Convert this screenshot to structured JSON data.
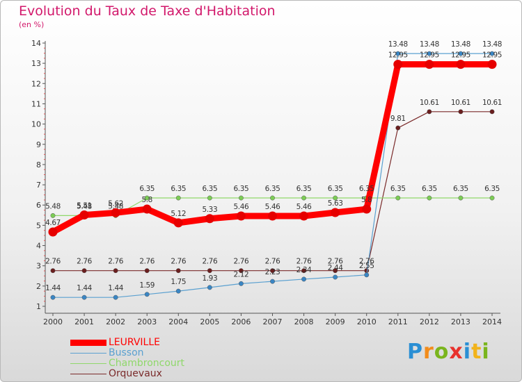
{
  "title": "Evolution du Taux de Taxe d'Habitation",
  "unit": "(en %)",
  "logo": {
    "text": "Proxiti",
    "letters": [
      {
        "char": "P",
        "color": "#2a8fd4"
      },
      {
        "char": "r",
        "color": "#f28c1b"
      },
      {
        "char": "o",
        "color": "#7ab51d"
      },
      {
        "char": "x",
        "color": "#e8322d"
      },
      {
        "char": "i",
        "color": "#2a8fd4"
      },
      {
        "char": "t",
        "color": "#f2b31b"
      },
      {
        "char": "i",
        "color": "#7ab51d"
      }
    ]
  },
  "legend": [
    {
      "label": "LEURVILLE",
      "color": "#ff0000"
    },
    {
      "label": "Busson",
      "color": "#5aa0d0"
    },
    {
      "label": "Chambroncourt",
      "color": "#8fd86a"
    },
    {
      "label": "Orquevaux",
      "color": "#7a2a2a"
    }
  ],
  "chart_data": {
    "type": "line",
    "x": [
      "2000",
      "2001",
      "2002",
      "2003",
      "2004",
      "2005",
      "2006",
      "2007",
      "2008",
      "2009",
      "2010",
      "2011",
      "2012",
      "2013",
      "2014"
    ],
    "ylim": [
      1,
      14
    ],
    "yticks": [
      "1",
      "2",
      "3",
      "4",
      "5",
      "6",
      "7",
      "8",
      "9",
      "10",
      "11",
      "12",
      "13",
      "14"
    ],
    "grid": false,
    "legend_position": "bottom-left",
    "series": [
      {
        "name": "LEURVILLE",
        "color": "#ff0000",
        "marker": "#e60000",
        "values": [
          4.67,
          5.51,
          5.62,
          5.8,
          5.12,
          5.33,
          5.46,
          5.46,
          5.46,
          5.63,
          5.8,
          12.95,
          12.95,
          12.95,
          12.95
        ],
        "labels": [
          "4.67",
          "5.51",
          "5.62",
          "5.8",
          "5.12",
          "5.33",
          "5.46",
          "5.46",
          "5.46",
          "5.63",
          "5.8",
          "12.95",
          "12.95",
          "12.95",
          "12.95"
        ]
      },
      {
        "name": "Busson",
        "color": "#5aa0d0",
        "marker": "#3a86c4",
        "values": [
          1.44,
          1.44,
          1.44,
          1.59,
          1.75,
          1.93,
          2.12,
          2.23,
          2.34,
          2.44,
          2.55,
          13.48,
          13.48,
          13.48,
          13.48
        ],
        "labels": [
          "1.44",
          "1.44",
          "1.44",
          "1.59",
          "1.75",
          "1.93",
          "2.12",
          "2.23",
          "2.34",
          "2.44",
          "2.55",
          "13.48",
          "13.48",
          "13.48",
          "13.48"
        ]
      },
      {
        "name": "Chambroncourt",
        "color": "#8fd86a",
        "marker": "#7ccc55",
        "values": [
          5.48,
          5.48,
          5.48,
          6.35,
          6.35,
          6.35,
          6.35,
          6.35,
          6.35,
          6.35,
          6.35,
          6.35,
          6.35,
          6.35,
          6.35
        ],
        "labels": [
          "5.48",
          "5.48",
          "5.48",
          "6.35",
          "6.35",
          "6.35",
          "6.35",
          "6.35",
          "6.35",
          "6.35",
          "6.35",
          "6.35",
          "6.35",
          "6.35",
          "6.35"
        ]
      },
      {
        "name": "Orquevaux",
        "color": "#7a2a2a",
        "marker": "#6a1e1e",
        "values": [
          2.76,
          2.76,
          2.76,
          2.76,
          2.76,
          2.76,
          2.76,
          2.76,
          2.76,
          2.76,
          2.76,
          9.81,
          10.61,
          10.61,
          10.61
        ],
        "labels": [
          "2.76",
          "2.76",
          "2.76",
          "2.76",
          "2.76",
          "2.76",
          "2.76",
          "2.76",
          "2.76",
          "2.76",
          "2.76",
          "9.81",
          "10.61",
          "10.61",
          "10.61"
        ]
      }
    ]
  }
}
